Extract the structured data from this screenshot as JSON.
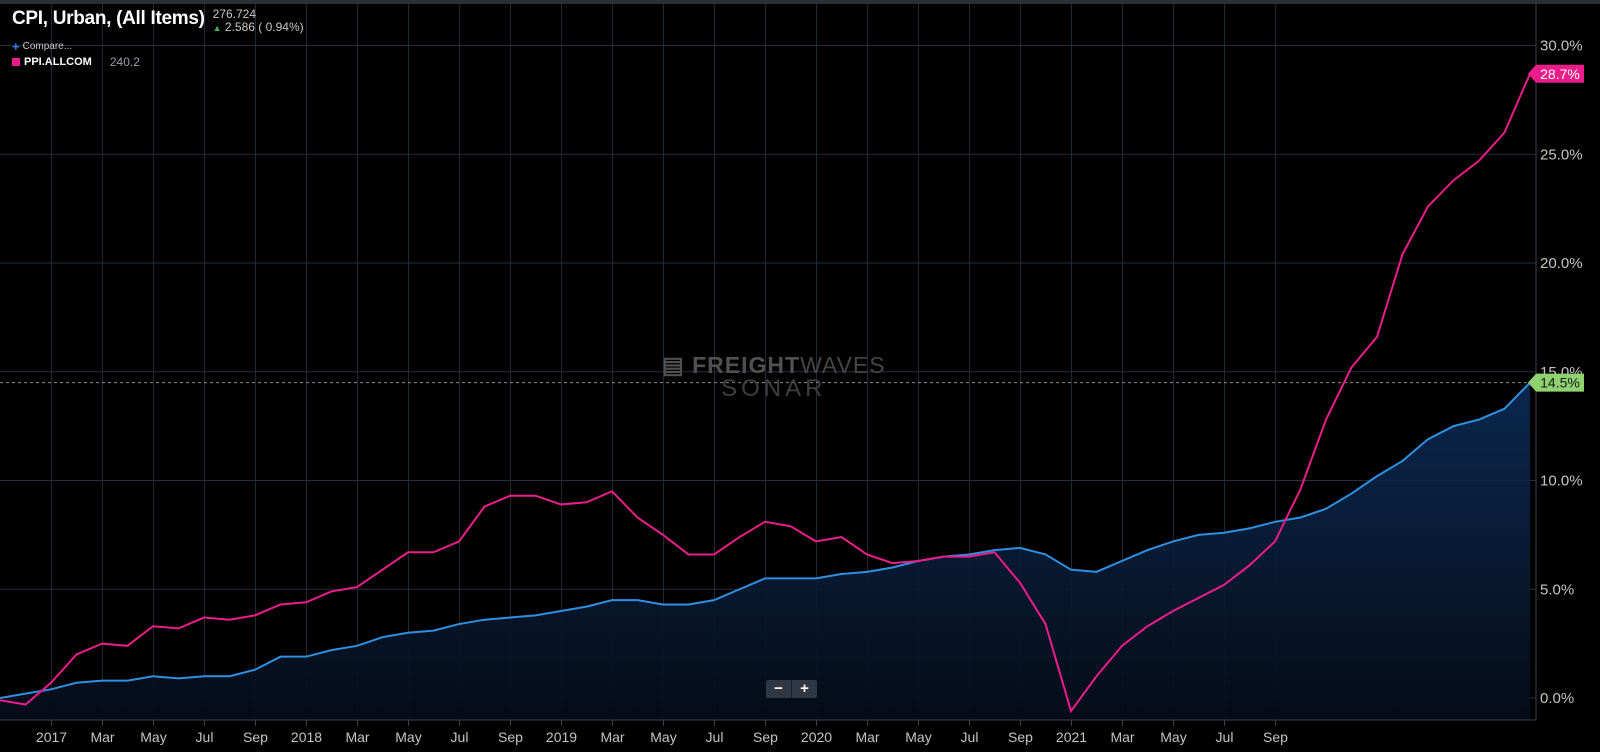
{
  "header": {
    "title": "CPI, Urban, (All Items)",
    "last_value": "276.724",
    "change": "2.586 ( 0.94%)",
    "compare_label": "Compare...",
    "series2_name": "PPI.ALLCOM",
    "series2_value": "240.2"
  },
  "watermark": {
    "line1_bold": "FREIGHT",
    "line1_thin": "WAVES",
    "line2": "SONAR"
  },
  "zoom": {
    "minus": "−",
    "plus": "+"
  },
  "colors": {
    "cpi": "#2f8fe0",
    "ppi": "#ec1c8a",
    "cpi_badge": "#8fd16f",
    "ppi_badge": "#ec1c8a"
  },
  "chart_data": {
    "type": "line",
    "x_ticks": [
      "2017",
      "Mar",
      "May",
      "Jul",
      "Sep",
      "2018",
      "Mar",
      "May",
      "Jul",
      "Sep",
      "2019",
      "Mar",
      "May",
      "Jul",
      "Sep",
      "2020",
      "Mar",
      "May",
      "Jul",
      "Sep",
      "2021",
      "Mar",
      "May",
      "Jul",
      "Sep"
    ],
    "y_ticks": [
      "0.0%",
      "5.0%",
      "10.0%",
      "15.0%",
      "20.0%",
      "25.0%",
      "30.0%"
    ],
    "ylim": [
      0,
      30
    ],
    "y_unit": "%",
    "series": [
      {
        "name": "CPI, Urban, (All Items)",
        "color": "#2f8fe0",
        "fill": true,
        "end_label": "14.5%",
        "values": [
          0.0,
          0.2,
          0.4,
          0.7,
          0.8,
          0.8,
          1.0,
          0.9,
          1.0,
          1.0,
          1.3,
          1.9,
          1.9,
          2.2,
          2.4,
          2.8,
          3.0,
          3.1,
          3.4,
          3.6,
          3.7,
          3.8,
          4.0,
          4.2,
          4.5,
          4.5,
          4.3,
          4.3,
          4.5,
          5.0,
          5.5,
          5.5,
          5.5,
          5.7,
          5.8,
          6.0,
          6.3,
          6.5,
          6.6,
          6.8,
          6.9,
          6.6,
          5.9,
          5.8,
          6.3,
          6.8,
          7.2,
          7.5,
          7.6,
          7.8,
          8.1,
          8.3,
          8.7,
          9.4,
          10.2,
          10.9,
          11.9,
          12.5,
          12.8,
          13.3,
          14.5
        ]
      },
      {
        "name": "PPI.ALLCOM",
        "color": "#ec1c8a",
        "fill": false,
        "end_label": "28.7%",
        "values": [
          -0.1,
          -0.3,
          0.7,
          2.0,
          2.5,
          2.4,
          3.3,
          3.2,
          3.7,
          3.6,
          3.8,
          4.3,
          4.4,
          4.9,
          5.1,
          5.9,
          6.7,
          6.7,
          7.2,
          8.8,
          9.3,
          9.3,
          8.9,
          9.0,
          9.5,
          8.3,
          7.5,
          6.6,
          6.6,
          7.4,
          8.1,
          7.9,
          7.2,
          7.4,
          6.6,
          6.2,
          6.3,
          6.5,
          6.5,
          6.7,
          5.3,
          3.4,
          -0.6,
          1.0,
          2.4,
          3.3,
          4.0,
          4.6,
          5.2,
          6.1,
          7.2,
          9.6,
          12.8,
          15.2,
          16.6,
          20.4,
          22.6,
          23.8,
          24.7,
          26.0,
          28.7
        ]
      }
    ]
  }
}
